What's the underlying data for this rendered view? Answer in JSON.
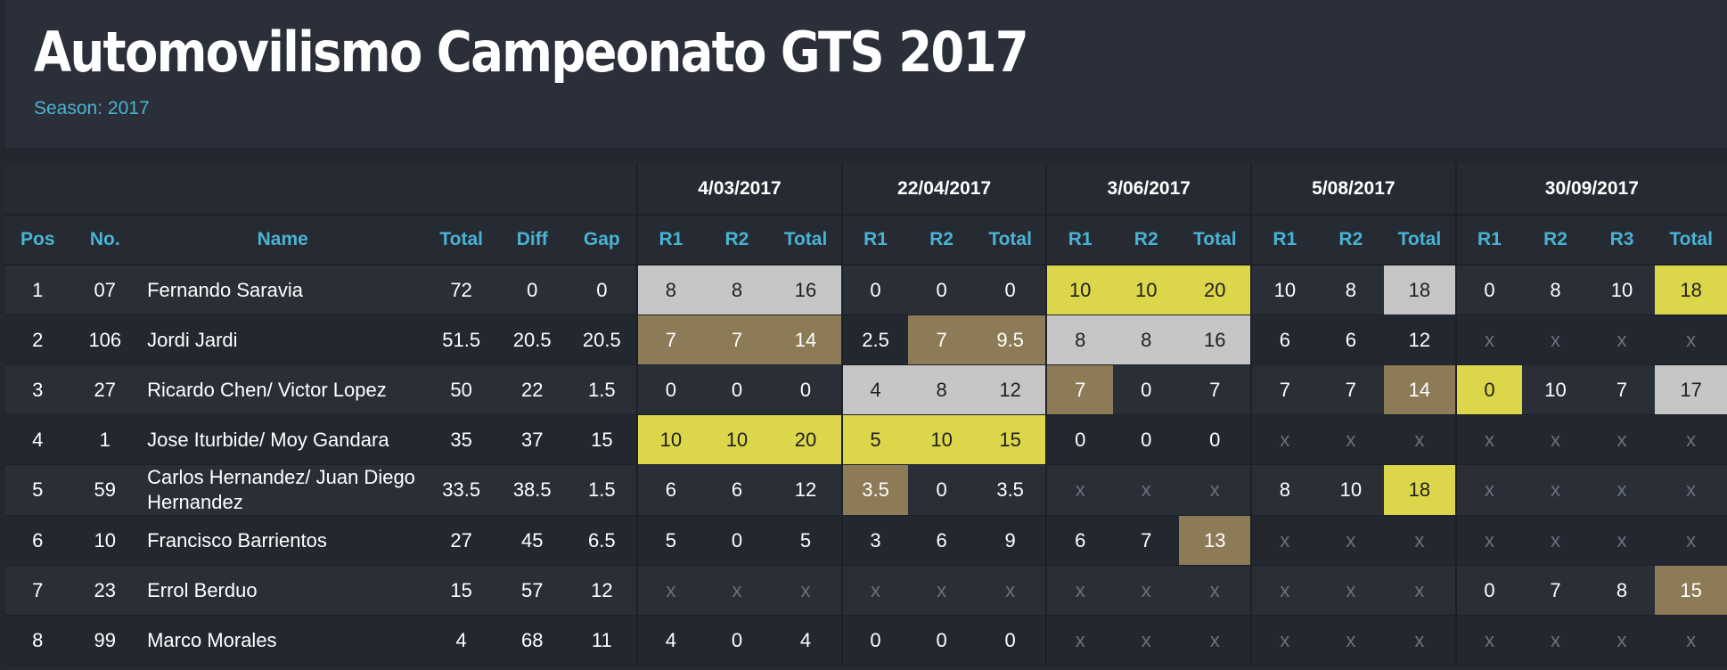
{
  "header": {
    "title": "Automovilismo Campeonato GTS 2017",
    "season_label": "Season:",
    "season_value": "2017"
  },
  "colors": {
    "accent": "#4ab3d3",
    "gold": "#dcd64a",
    "silver": "#c6c6c6",
    "bronze": "#8c7b56",
    "background": "#23272f"
  },
  "table": {
    "events": [
      "4/03/2017",
      "22/04/2017",
      "3/06/2017",
      "5/08/2017",
      "30/09/2017"
    ],
    "columns": [
      "Pos",
      "No.",
      "Name",
      "Total",
      "Diff",
      "Gap",
      "R1",
      "R2",
      "Total",
      "R1",
      "R2",
      "Total",
      "R1",
      "R2",
      "Total",
      "R1",
      "R2",
      "Total",
      "R1",
      "R2",
      "R3",
      "Total"
    ],
    "rows": [
      {
        "pos": "1",
        "no": "07",
        "name": "Fernando Saravia",
        "total": "72",
        "diff": "0",
        "gap": "0",
        "cells": [
          [
            "8",
            "silver"
          ],
          [
            "8",
            "silver"
          ],
          [
            "16",
            "silver"
          ],
          [
            "0",
            ""
          ],
          [
            "0",
            ""
          ],
          [
            "0",
            ""
          ],
          [
            "10",
            "gold"
          ],
          [
            "10",
            "gold"
          ],
          [
            "20",
            "gold"
          ],
          [
            "10",
            ""
          ],
          [
            "8",
            ""
          ],
          [
            "18",
            "silver"
          ],
          [
            "0",
            ""
          ],
          [
            "8",
            ""
          ],
          [
            "10",
            ""
          ],
          [
            "18",
            "gold"
          ]
        ]
      },
      {
        "pos": "2",
        "no": "106",
        "name": "Jordi Jardi",
        "total": "51.5",
        "diff": "20.5",
        "gap": "20.5",
        "cells": [
          [
            "7",
            "bronze"
          ],
          [
            "7",
            "bronze"
          ],
          [
            "14",
            "bronze"
          ],
          [
            "2.5",
            ""
          ],
          [
            "7",
            "bronze"
          ],
          [
            "9.5",
            "bronze"
          ],
          [
            "8",
            "silver"
          ],
          [
            "8",
            "silver"
          ],
          [
            "16",
            "silver"
          ],
          [
            "6",
            ""
          ],
          [
            "6",
            ""
          ],
          [
            "12",
            ""
          ],
          [
            "x",
            "x"
          ],
          [
            "x",
            "x"
          ],
          [
            "x",
            "x"
          ],
          [
            "x",
            "x"
          ]
        ]
      },
      {
        "pos": "3",
        "no": "27",
        "name": "Ricardo Chen/ Victor Lopez",
        "total": "50",
        "diff": "22",
        "gap": "1.5",
        "cells": [
          [
            "0",
            ""
          ],
          [
            "0",
            ""
          ],
          [
            "0",
            ""
          ],
          [
            "4",
            "silver"
          ],
          [
            "8",
            "silver"
          ],
          [
            "12",
            "silver"
          ],
          [
            "7",
            "bronze"
          ],
          [
            "0",
            ""
          ],
          [
            "7",
            ""
          ],
          [
            "7",
            ""
          ],
          [
            "7",
            ""
          ],
          [
            "14",
            "bronze"
          ],
          [
            "0",
            "gold"
          ],
          [
            "10",
            ""
          ],
          [
            "7",
            ""
          ],
          [
            "17",
            "silver"
          ]
        ]
      },
      {
        "pos": "4",
        "no": "1",
        "name": "Jose Iturbide/ Moy Gandara",
        "total": "35",
        "diff": "37",
        "gap": "15",
        "cells": [
          [
            "10",
            "gold"
          ],
          [
            "10",
            "gold"
          ],
          [
            "20",
            "gold"
          ],
          [
            "5",
            "gold"
          ],
          [
            "10",
            "gold"
          ],
          [
            "15",
            "gold"
          ],
          [
            "0",
            ""
          ],
          [
            "0",
            ""
          ],
          [
            "0",
            ""
          ],
          [
            "x",
            "x"
          ],
          [
            "x",
            "x"
          ],
          [
            "x",
            "x"
          ],
          [
            "x",
            "x"
          ],
          [
            "x",
            "x"
          ],
          [
            "x",
            "x"
          ],
          [
            "x",
            "x"
          ]
        ]
      },
      {
        "pos": "5",
        "no": "59",
        "name": "Carlos Hernandez/ Juan Diego Hernandez",
        "total": "33.5",
        "diff": "38.5",
        "gap": "1.5",
        "cells": [
          [
            "6",
            ""
          ],
          [
            "6",
            ""
          ],
          [
            "12",
            ""
          ],
          [
            "3.5",
            "bronze"
          ],
          [
            "0",
            ""
          ],
          [
            "3.5",
            ""
          ],
          [
            "x",
            "x"
          ],
          [
            "x",
            "x"
          ],
          [
            "x",
            "x"
          ],
          [
            "8",
            ""
          ],
          [
            "10",
            ""
          ],
          [
            "18",
            "gold"
          ],
          [
            "x",
            "x"
          ],
          [
            "x",
            "x"
          ],
          [
            "x",
            "x"
          ],
          [
            "x",
            "x"
          ]
        ]
      },
      {
        "pos": "6",
        "no": "10",
        "name": "Francisco Barrientos",
        "total": "27",
        "diff": "45",
        "gap": "6.5",
        "cells": [
          [
            "5",
            ""
          ],
          [
            "0",
            ""
          ],
          [
            "5",
            ""
          ],
          [
            "3",
            ""
          ],
          [
            "6",
            ""
          ],
          [
            "9",
            ""
          ],
          [
            "6",
            ""
          ],
          [
            "7",
            ""
          ],
          [
            "13",
            "bronze"
          ],
          [
            "x",
            "x"
          ],
          [
            "x",
            "x"
          ],
          [
            "x",
            "x"
          ],
          [
            "x",
            "x"
          ],
          [
            "x",
            "x"
          ],
          [
            "x",
            "x"
          ],
          [
            "x",
            "x"
          ]
        ]
      },
      {
        "pos": "7",
        "no": "23",
        "name": "Errol Berduo",
        "total": "15",
        "diff": "57",
        "gap": "12",
        "cells": [
          [
            "x",
            "x"
          ],
          [
            "x",
            "x"
          ],
          [
            "x",
            "x"
          ],
          [
            "x",
            "x"
          ],
          [
            "x",
            "x"
          ],
          [
            "x",
            "x"
          ],
          [
            "x",
            "x"
          ],
          [
            "x",
            "x"
          ],
          [
            "x",
            "x"
          ],
          [
            "x",
            "x"
          ],
          [
            "x",
            "x"
          ],
          [
            "x",
            "x"
          ],
          [
            "0",
            ""
          ],
          [
            "7",
            ""
          ],
          [
            "8",
            ""
          ],
          [
            "15",
            "bronze"
          ]
        ]
      },
      {
        "pos": "8",
        "no": "99",
        "name": "Marco Morales",
        "total": "4",
        "diff": "68",
        "gap": "11",
        "cells": [
          [
            "4",
            ""
          ],
          [
            "0",
            ""
          ],
          [
            "4",
            ""
          ],
          [
            "0",
            ""
          ],
          [
            "0",
            ""
          ],
          [
            "0",
            ""
          ],
          [
            "x",
            "x"
          ],
          [
            "x",
            "x"
          ],
          [
            "x",
            "x"
          ],
          [
            "x",
            "x"
          ],
          [
            "x",
            "x"
          ],
          [
            "x",
            "x"
          ],
          [
            "x",
            "x"
          ],
          [
            "x",
            "x"
          ],
          [
            "x",
            "x"
          ],
          [
            "x",
            "x"
          ]
        ]
      }
    ]
  }
}
